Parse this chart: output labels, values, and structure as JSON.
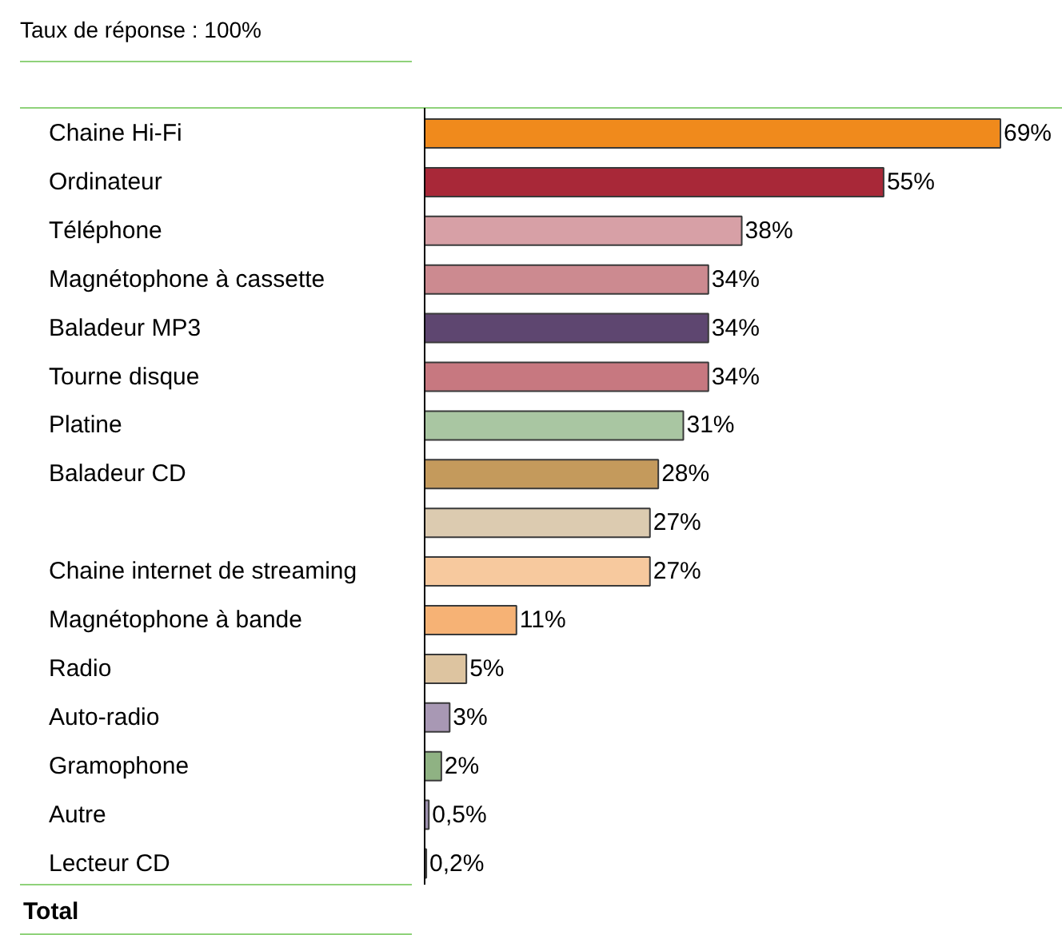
{
  "chart_data": {
    "type": "bar",
    "orientation": "horizontal",
    "title": "Taux de réponse : 100%",
    "categories": [
      "Chaine Hi-Fi",
      "Ordinateur",
      "Téléphone",
      "Magnétophone à cassette",
      "Baladeur MP3",
      "Tourne disque",
      "Platine",
      "Baladeur CD",
      null,
      "Chaine internet de streaming",
      "Magnétophone à bande",
      "Radio",
      "Auto-radio",
      "Gramophone",
      "Autre",
      "Lecteur CD"
    ],
    "values": [
      69,
      55,
      38,
      34,
      34,
      34,
      31,
      28,
      27,
      27,
      11,
      5,
      3,
      2,
      0.5,
      0.2
    ],
    "colors": [
      "#f08a1c",
      "#a82838",
      "#d7a0a6",
      "#cc8a90",
      "#5e4670",
      "#c77880",
      "#a9c6a2",
      "#c49a5c",
      "#dccbb0",
      "#f7c99e",
      "#f6b275",
      "#ddc4a0",
      "#a898b4",
      "#8fb283",
      "#9e92b0",
      "#d8c29c"
    ],
    "value_labels": [
      "69%",
      "55%",
      "38%",
      "34%",
      "34%",
      "34%",
      "31%",
      "28%",
      "27%",
      "27%",
      "11%",
      "5%",
      "3%",
      "2%",
      "0,5%",
      "0,2%"
    ],
    "annotations": [
      "Total"
    ],
    "data_labels": true
  }
}
